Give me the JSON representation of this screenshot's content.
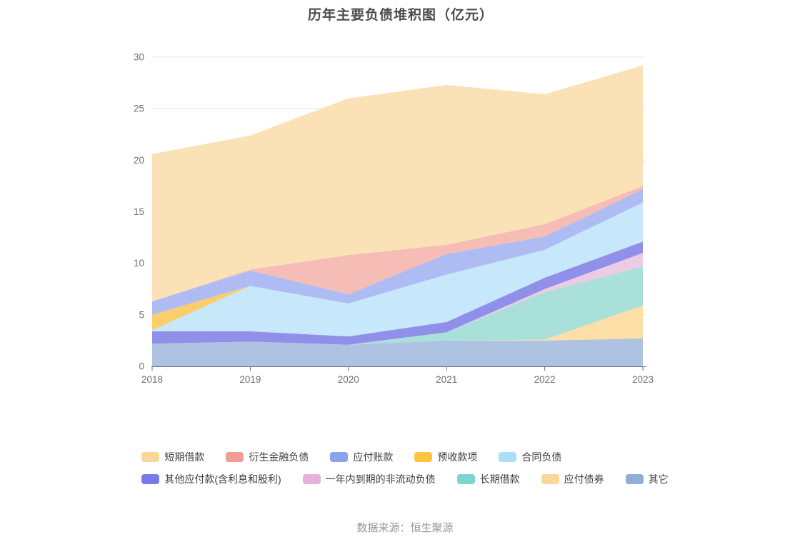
{
  "title": "历年主要负债堆积图（亿元）",
  "footer": "数据来源：恒生聚源",
  "axis_color": "#6E7079",
  "grid_color": "#E3E8F3",
  "chart_data": {
    "type": "area",
    "stacked": true,
    "title": "历年主要负债堆积图（亿元）",
    "x": [
      "2018",
      "2019",
      "2020",
      "2021",
      "2022",
      "2023"
    ],
    "xlabel": "",
    "ylabel": "",
    "ylim": [
      0,
      30
    ],
    "y_ticks": [
      "0",
      "5",
      "10",
      "15",
      "20",
      "25",
      "30"
    ],
    "grid": true,
    "legend_position": "bottom",
    "series": [
      {
        "name": "其它",
        "values": [
          2.2,
          2.4,
          2.1,
          2.5,
          2.5,
          2.7
        ],
        "color": "#8FAED8",
        "fill": "#AEC3E2"
      },
      {
        "name": "应付债券",
        "values": [
          0,
          0,
          0,
          0,
          0.1,
          3.2
        ],
        "color": "#FAD69B",
        "fill": "#FBDFA6"
      },
      {
        "name": "长期借款",
        "values": [
          0,
          0,
          0,
          0.8,
          4.6,
          3.8
        ],
        "color": "#7CD5CD",
        "fill": "#A9E0DA"
      },
      {
        "name": "一年内到期的非流动负债",
        "values": [
          0,
          0,
          0,
          0,
          0.3,
          1.3
        ],
        "color": "#E6B0DA",
        "fill": "#ECCBE5"
      },
      {
        "name": "其他应付款(含利息和股利)",
        "values": [
          1.2,
          1.0,
          0.8,
          1.0,
          1.1,
          1.1
        ],
        "color": "#7B7AEA",
        "fill": "#908FEA"
      },
      {
        "name": "合同负债",
        "values": [
          0.1,
          4.4,
          3.2,
          4.6,
          2.7,
          3.8
        ],
        "color": "#ABDFF7",
        "fill": "#C7E8FB"
      },
      {
        "name": "预收款项",
        "values": [
          1.5,
          0,
          0,
          0,
          0,
          0
        ],
        "color": "#FFC53E",
        "fill": "#FBCE6B"
      },
      {
        "name": "应付账款",
        "values": [
          1.3,
          1.5,
          0.9,
          2.0,
          1.3,
          1.3
        ],
        "color": "#8DA1EE",
        "fill": "#AEBCF3"
      },
      {
        "name": "衍生金融负债",
        "values": [
          0,
          0.1,
          3.8,
          0.9,
          1.2,
          0.3
        ],
        "color": "#F19C94",
        "fill": "#F6BDB6"
      },
      {
        "name": "短期借款",
        "values": [
          14.3,
          13.0,
          15.2,
          15.5,
          12.6,
          11.7
        ],
        "color": "#FAD69B",
        "fill": "#FBE2B6"
      }
    ],
    "legend_rows": [
      [
        "短期借款",
        "衍生金融负债",
        "应付账款",
        "预收款项",
        "合同负债"
      ],
      [
        "其他应付款(含利息和股利)",
        "一年内到期的非流动负债",
        "长期借款",
        "应付债券",
        "其它"
      ]
    ],
    "totals": [
      20.6,
      22.4,
      26.0,
      27.3,
      26.4,
      29.2
    ]
  }
}
